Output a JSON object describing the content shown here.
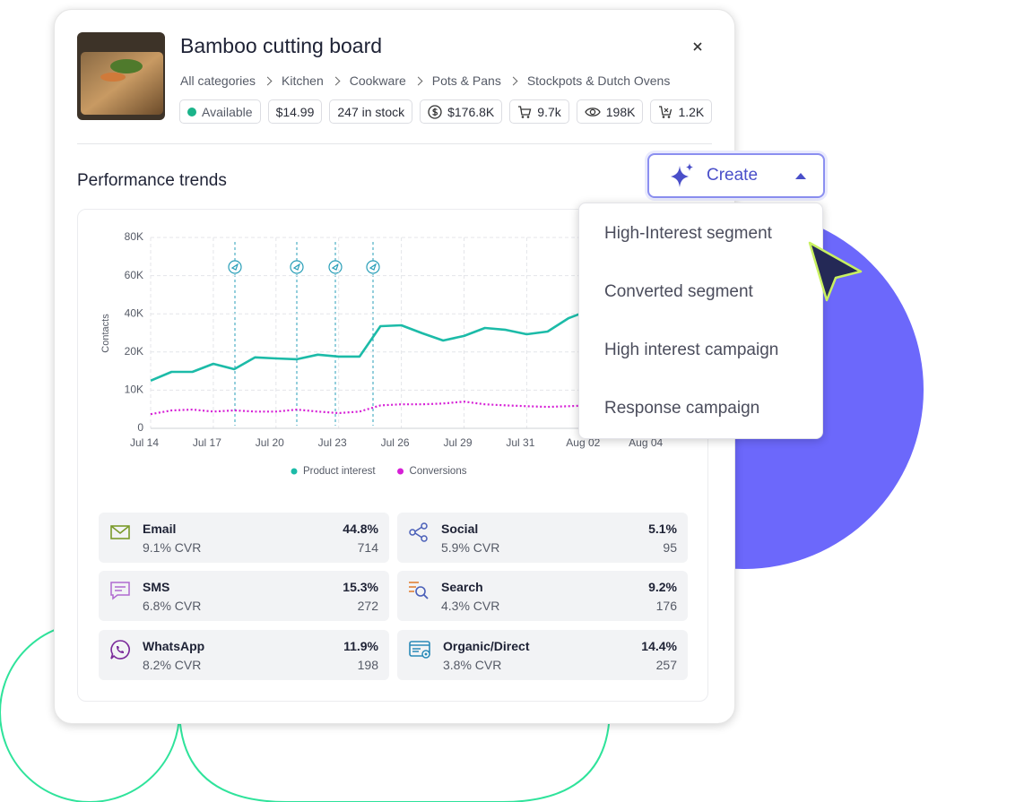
{
  "product": {
    "title": "Bamboo cutting board",
    "breadcrumbs": [
      "All categories",
      "Kitchen",
      "Cookware",
      "Pots & Pans",
      "Stockpots & Dutch Ovens"
    ],
    "badges": [
      "Available",
      "$14.99",
      "247 in stock",
      "$176.8K",
      "9.7k",
      "198K",
      "1.2K"
    ]
  },
  "section_title": "Performance trends",
  "create_button": "Create",
  "menu": [
    "High-Interest segment",
    "Converted segment",
    "High interest campaign",
    "Response campaign"
  ],
  "chart_data": {
    "type": "line",
    "ylabel": "Contacts",
    "categories": [
      "Jul 14",
      null,
      null,
      "Jul 17",
      null,
      null,
      "Jul 20",
      null,
      null,
      "Jul 23",
      null,
      null,
      "Jul 26",
      null,
      null,
      "Jul 29",
      null,
      null,
      "Jul 31",
      null,
      null,
      "Aug 02",
      null,
      null,
      "Aug 04",
      null,
      null
    ],
    "series": [
      {
        "name": "Product interest",
        "color": "#1cbba8",
        "style": "solid",
        "values": [
          12500,
          14800,
          14800,
          16900,
          15500,
          18600,
          18300,
          18100,
          19300,
          18800,
          18800,
          33500,
          34000,
          29800,
          26000,
          28400,
          32600,
          31600,
          29300,
          30700,
          37700,
          41900,
          null,
          null,
          null,
          null,
          null
        ]
      },
      {
        "name": "Conversions",
        "color": "#d61fd6",
        "style": "dotted",
        "values": [
          3700,
          4700,
          4900,
          4400,
          4700,
          4400,
          4400,
          4900,
          4400,
          4000,
          4400,
          6000,
          6300,
          6300,
          6500,
          7000,
          6300,
          6000,
          5800,
          5600,
          5800,
          6000,
          null,
          null,
          null,
          null,
          null
        ]
      }
    ],
    "ylim": [
      0,
      80000
    ],
    "yticks": [
      0,
      {
        "value": 10000,
        "label": "10K"
      },
      {
        "value": 20000,
        "label": "20K"
      },
      {
        "value": 40000,
        "label": "40K"
      },
      {
        "value": 60000,
        "label": "60K"
      },
      {
        "value": 80000,
        "label": "80K"
      }
    ],
    "grid": true
  },
  "channels": [
    {
      "name": "Email",
      "share": "44.8%",
      "cvr": "9.1% CVR",
      "count": "714"
    },
    {
      "name": "Social",
      "share": "5.1%",
      "cvr": "5.9% CVR",
      "count": "95"
    },
    {
      "name": "SMS",
      "share": "15.3%",
      "cvr": "6.8% CVR",
      "count": "272"
    },
    {
      "name": "Search",
      "share": "9.2%",
      "cvr": "4.3% CVR",
      "count": "176"
    },
    {
      "name": "WhatsApp",
      "share": "11.9%",
      "cvr": "8.2% CVR",
      "count": "198"
    },
    {
      "name": "Organic/Direct",
      "share": "14.4%",
      "cvr": "3.8% CVR",
      "count": "257"
    }
  ]
}
